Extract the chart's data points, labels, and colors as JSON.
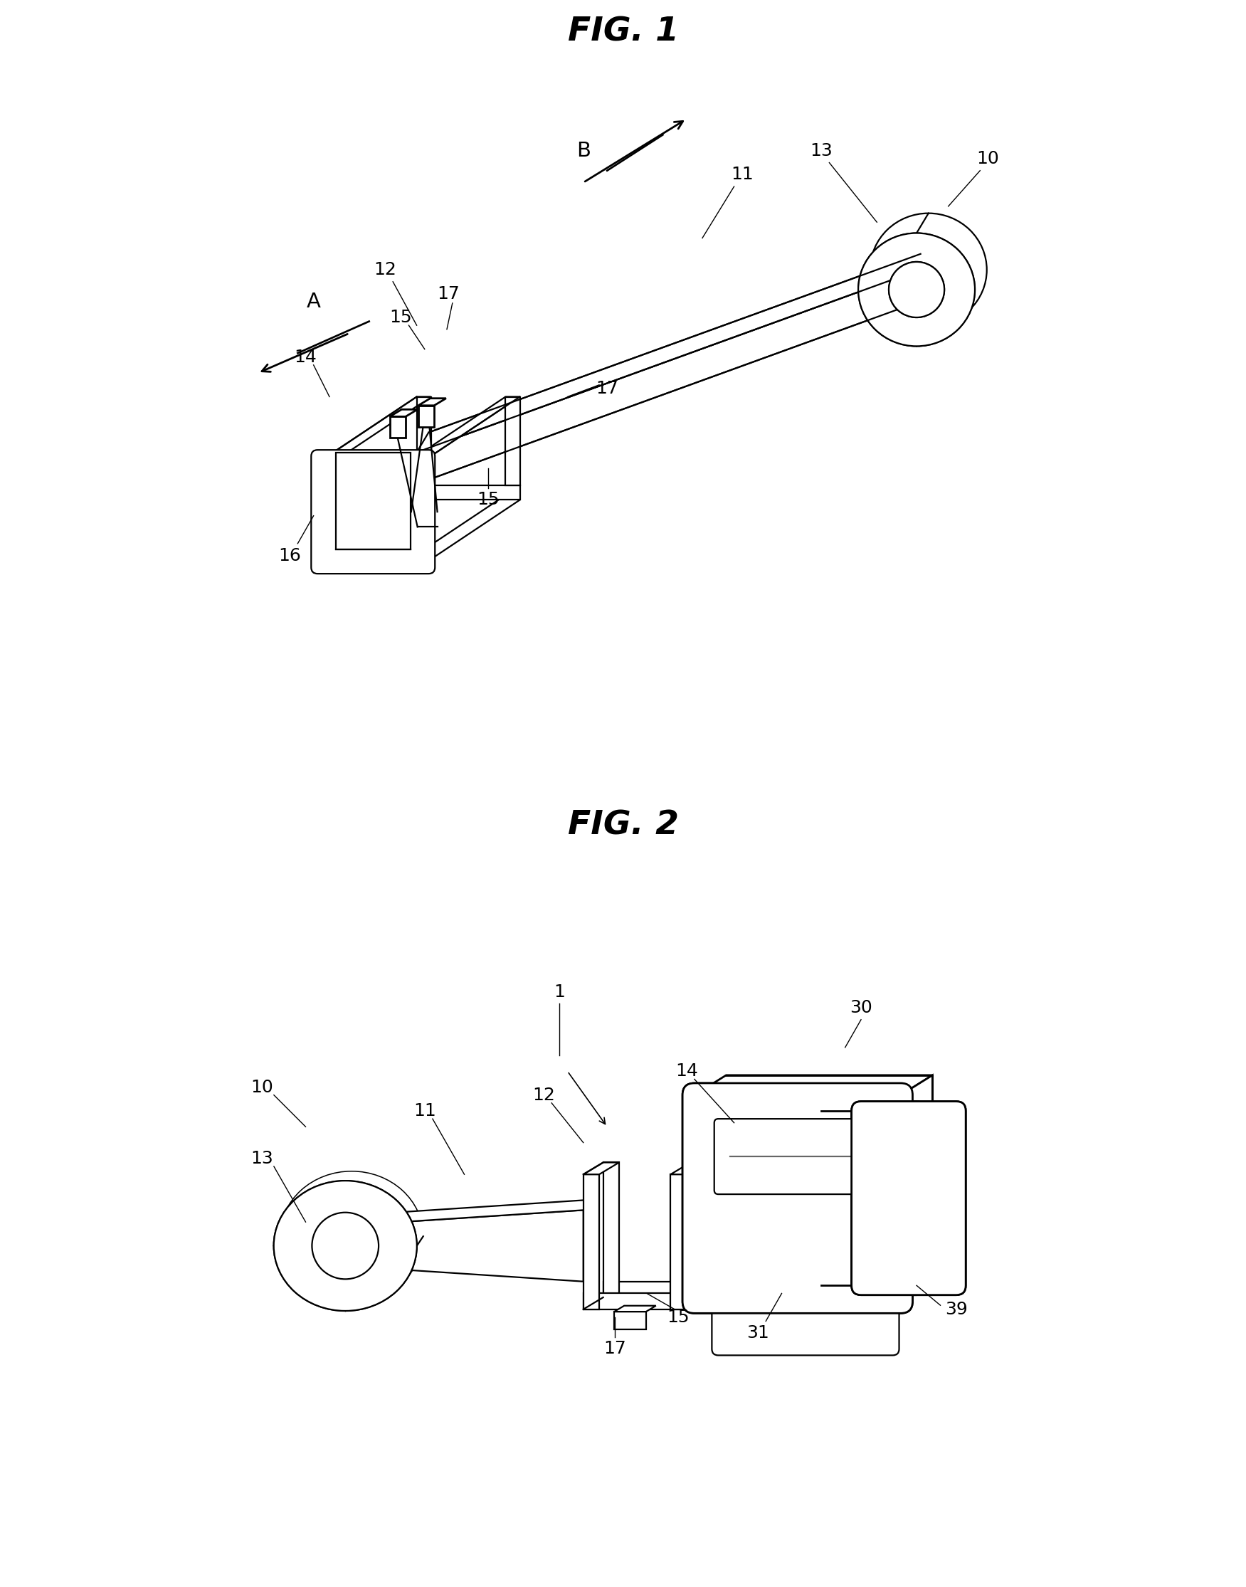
{
  "fig1_title": "FIG. 1",
  "fig2_title": "FIG. 2",
  "bg": "#ffffff",
  "lc": "#000000",
  "lw": 1.6,
  "tlw": 2.0,
  "fs_title": 34,
  "fs_label": 18
}
